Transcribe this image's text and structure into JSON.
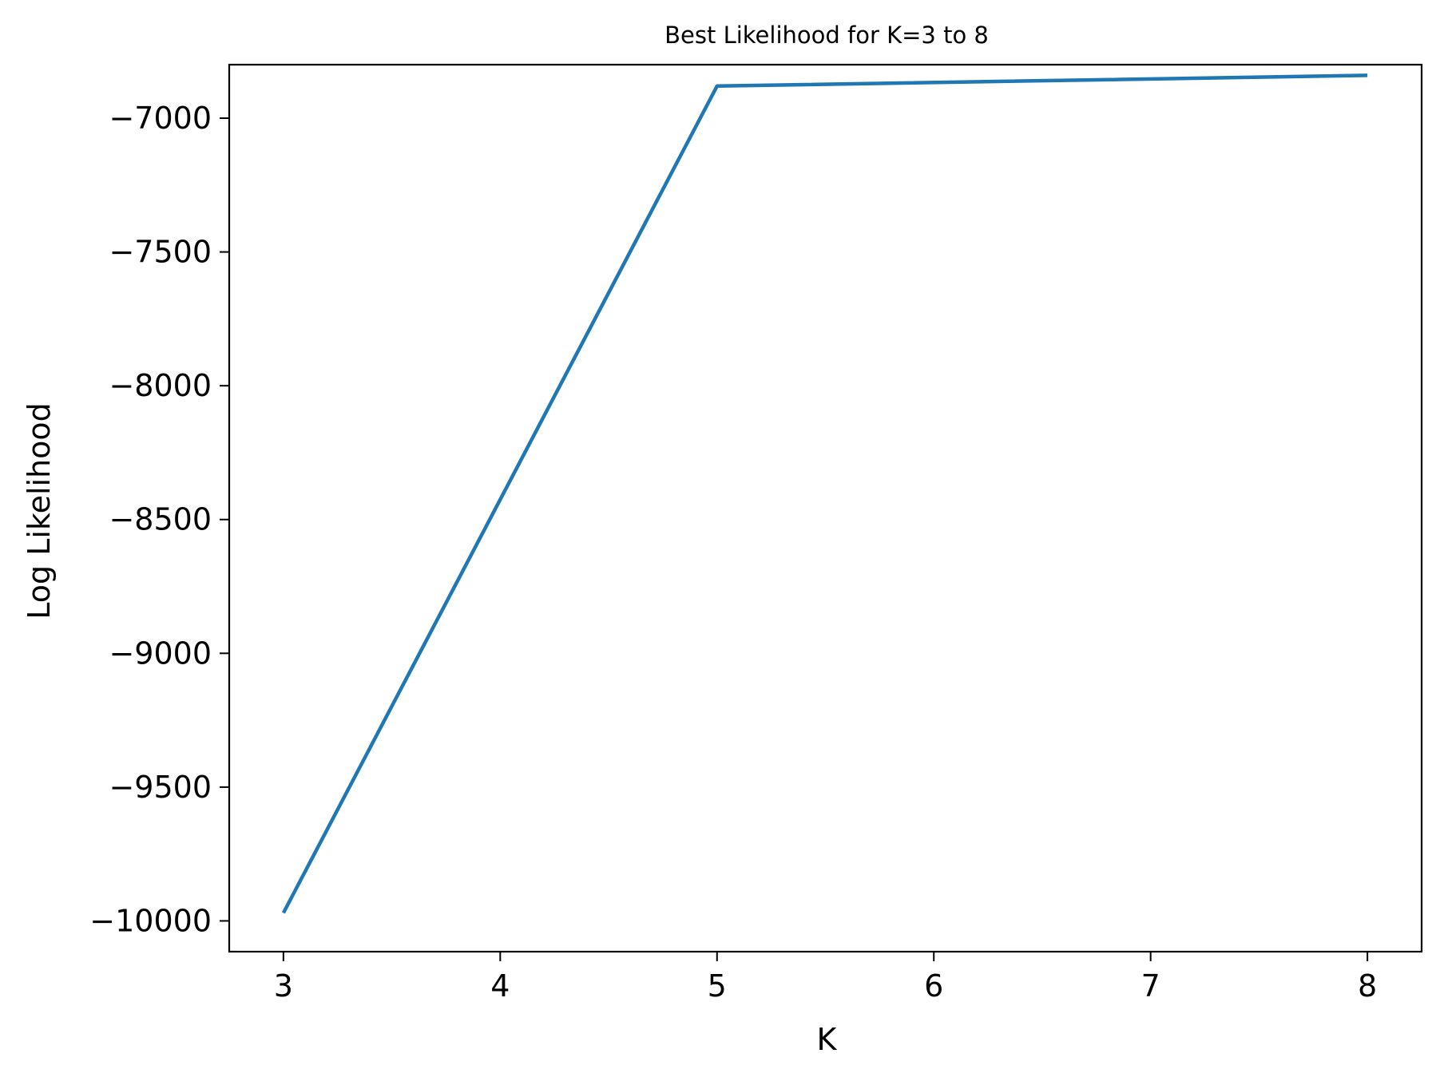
{
  "chart_data": {
    "type": "line",
    "title": "Best Likelihood for K=3 to 8",
    "xlabel": "K",
    "ylabel": "Log Likelihood",
    "x": [
      3,
      5,
      8
    ],
    "series": [
      {
        "values": [
          -9970,
          -6880,
          -6840
        ],
        "color": "#1f77b4"
      }
    ],
    "xlim": [
      2.75,
      8.25
    ],
    "ylim": [
      -10115,
      -6800
    ],
    "xticks": [
      3,
      4,
      5,
      6,
      7,
      8
    ],
    "xtick_labels": [
      "3",
      "4",
      "5",
      "6",
      "7",
      "8"
    ],
    "yticks": [
      -10000,
      -9500,
      -9000,
      -8500,
      -8000,
      -7500,
      -7000
    ],
    "ytick_labels": [
      "−10000",
      "−9500",
      "−9000",
      "−8500",
      "−8000",
      "−7500",
      "−7000"
    ],
    "grid": false,
    "legend": "none"
  }
}
